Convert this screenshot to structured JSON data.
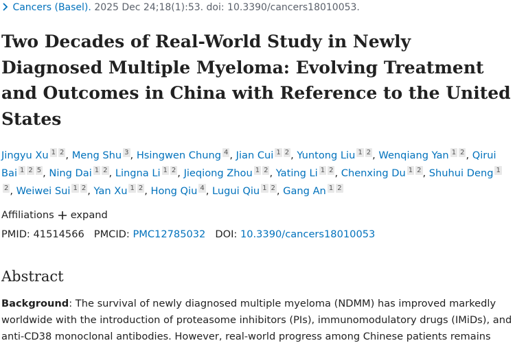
{
  "citation": {
    "journal": "Cancers (Basel).",
    "details": "2025 Dec 24;18(1):53. doi: 10.3390/cancers18010053."
  },
  "title": "Two Decades of Real-World Study in Newly Diagnosed Multiple Myeloma: Evolving Treatment and Outcomes in China with Reference to the United States",
  "author_separator": ",",
  "authors": [
    {
      "name": "Jingyu Xu",
      "affs": [
        "1",
        "2"
      ]
    },
    {
      "name": "Meng Shu",
      "affs": [
        "3"
      ]
    },
    {
      "name": "Hsingwen Chung",
      "affs": [
        "4"
      ]
    },
    {
      "name": "Jian Cui",
      "affs": [
        "1",
        "2"
      ]
    },
    {
      "name": "Yuntong Liu",
      "affs": [
        "1",
        "2"
      ]
    },
    {
      "name": "Wenqiang Yan",
      "affs": [
        "1",
        "2"
      ]
    },
    {
      "name": "Qirui Bai",
      "affs": [
        "1",
        "2",
        "5"
      ]
    },
    {
      "name": "Ning Dai",
      "affs": [
        "1",
        "2"
      ]
    },
    {
      "name": "Lingna Li",
      "affs": [
        "1",
        "2"
      ]
    },
    {
      "name": "Jieqiong Zhou",
      "affs": [
        "1",
        "2"
      ]
    },
    {
      "name": "Yating Li",
      "affs": [
        "1",
        "2"
      ]
    },
    {
      "name": "Chenxing Du",
      "affs": [
        "1",
        "2"
      ]
    },
    {
      "name": "Shuhui Deng",
      "affs": [
        "1",
        "2"
      ]
    },
    {
      "name": "Weiwei Sui",
      "affs": [
        "1",
        "2"
      ]
    },
    {
      "name": "Yan Xu",
      "affs": [
        "1",
        "2"
      ]
    },
    {
      "name": "Hong Qiu",
      "affs": [
        "4"
      ]
    },
    {
      "name": "Lugui Qiu",
      "affs": [
        "1",
        "2"
      ]
    },
    {
      "name": "Gang An",
      "affs": [
        "1",
        "2"
      ]
    }
  ],
  "affiliations": {
    "label": "Affiliations",
    "action": "expand"
  },
  "identifiers": [
    {
      "label": "PMID:",
      "value": "41514566"
    },
    {
      "label": "PMCID:",
      "value": "PMC12785032"
    },
    {
      "label": "DOI:",
      "value": "10.3390/cancers18010053"
    }
  ],
  "abstract": {
    "heading": "Abstract",
    "section_label": "Background",
    "text": ": The survival of newly diagnosed multiple myeloma (NDMM) has improved markedly worldwide with the introduction of proteasome inhibitors (PIs), immunomodulatory drugs (IMiDs), and anti-CD38 monoclonal antibodies. However, real-world progress among Chinese patients remains"
  }
}
